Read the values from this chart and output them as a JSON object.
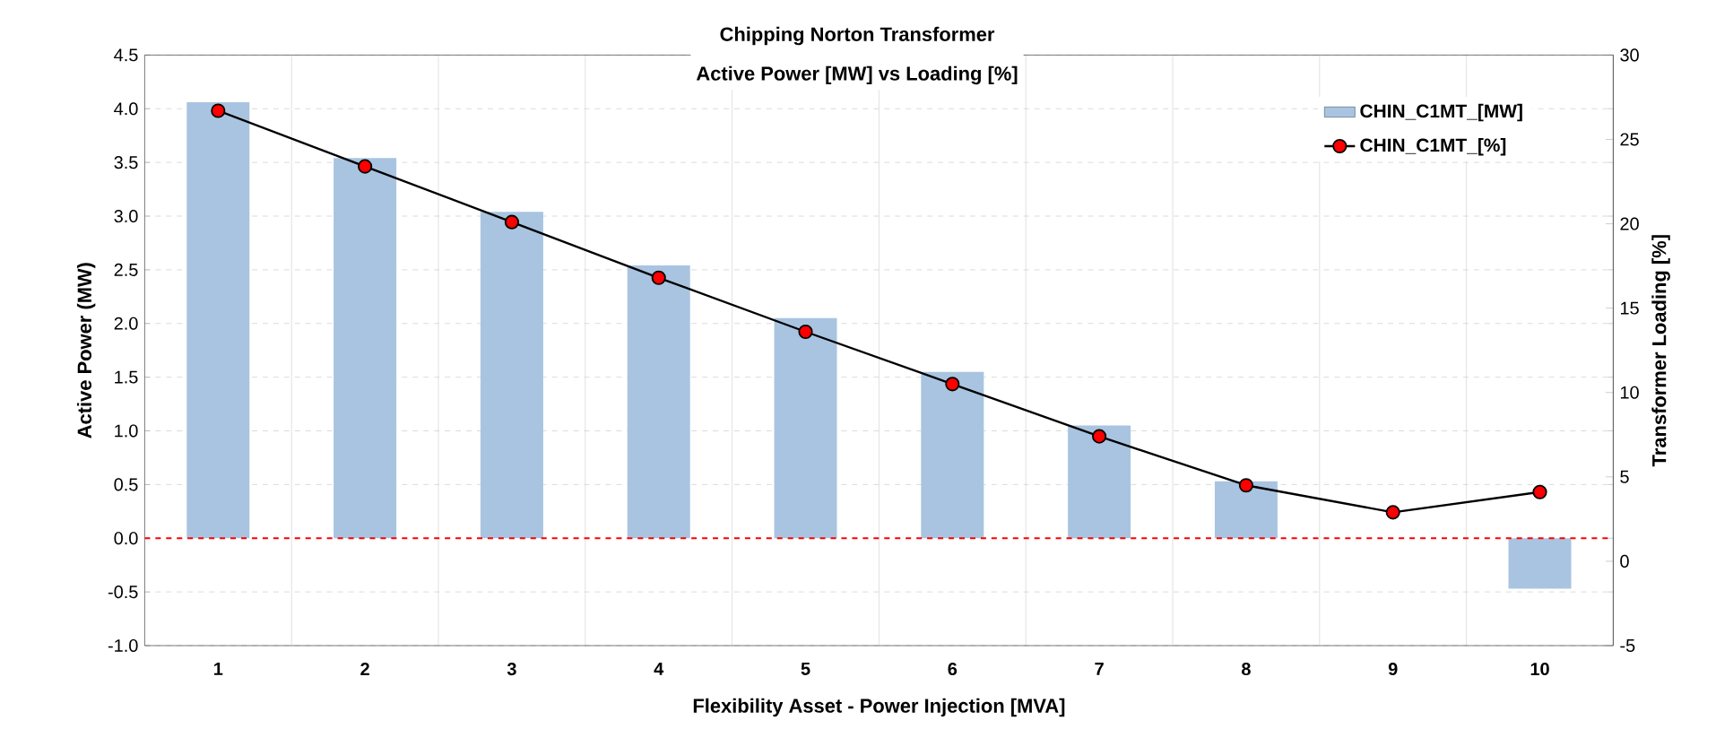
{
  "chart_data": {
    "type": "bar",
    "title": "Chipping Norton Transformer",
    "subtitle": "Active Power [MW] vs Loading [%]",
    "xlabel": "Flexibility Asset - Power Injection [MVA]",
    "ylabel": "Active Power (MW)",
    "y2label": "Transformer Loading [%]",
    "categories": [
      "1",
      "2",
      "3",
      "4",
      "5",
      "6",
      "7",
      "8",
      "9",
      "10"
    ],
    "series": [
      {
        "name": "CHIN_C1MT_[MW]",
        "color": "#a9c4e0",
        "values": [
          4.06,
          3.54,
          3.04,
          2.54,
          2.05,
          1.55,
          1.05,
          0.53,
          0,
          -0.47
        ]
      },
      {
        "name": "CHIN_C1MT_[%]",
        "type": "line",
        "axis": "y2",
        "color": "#000000",
        "marker": "circle",
        "values": [
          26.7,
          23.4,
          20.1,
          16.8,
          13.6,
          10.5,
          7.4,
          4.5,
          2.9,
          4.1
        ]
      }
    ],
    "ylim": [
      -1.0,
      4.5
    ],
    "yticks": [
      {
        "value": -1,
        "label": "-1.0"
      },
      -0.5,
      {
        "value": 0,
        "label": "0.0"
      },
      0.5,
      {
        "value": 1,
        "label": "1.0"
      },
      1.5,
      {
        "value": 2,
        "label": "2.0"
      },
      2.5,
      {
        "value": 3,
        "label": "3.0"
      },
      3.5,
      {
        "value": 4,
        "label": "4.0"
      },
      4.5
    ],
    "y2lim": [
      -5,
      30
    ],
    "y2ticks": [
      -5,
      0,
      5,
      10,
      15,
      20,
      25,
      30
    ],
    "ref_lines": [
      {
        "axis": "y",
        "value": 0,
        "color": "#ff0000",
        "line_style": "dashed"
      }
    ],
    "grid": true,
    "legend": "top right"
  }
}
